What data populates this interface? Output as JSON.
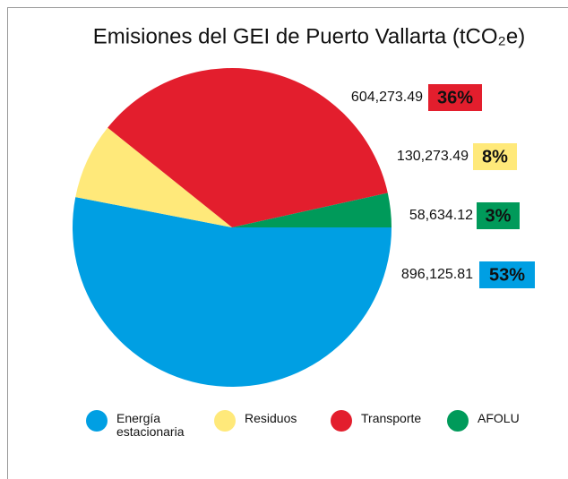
{
  "chart_data": {
    "type": "pie",
    "title": "Emisiones del GEI de Puerto Vallarta (tCO₂e)",
    "categories": [
      "Energía estacionaria",
      "Residuos",
      "Transporte",
      "AFOLU"
    ],
    "values": [
      896125.81,
      130273.49,
      604273.49,
      58634.12
    ],
    "value_labels": [
      "896,125.81",
      "130,273.49",
      "604,273.49",
      "58,634.12"
    ],
    "percentages": [
      53,
      8,
      36,
      3
    ],
    "percentage_labels": [
      "53%",
      "8%",
      "36%",
      "3%"
    ],
    "colors": [
      "#009fe3",
      "#ffe97a",
      "#e31e2d",
      "#009a5a"
    ],
    "legend": "bottom"
  }
}
